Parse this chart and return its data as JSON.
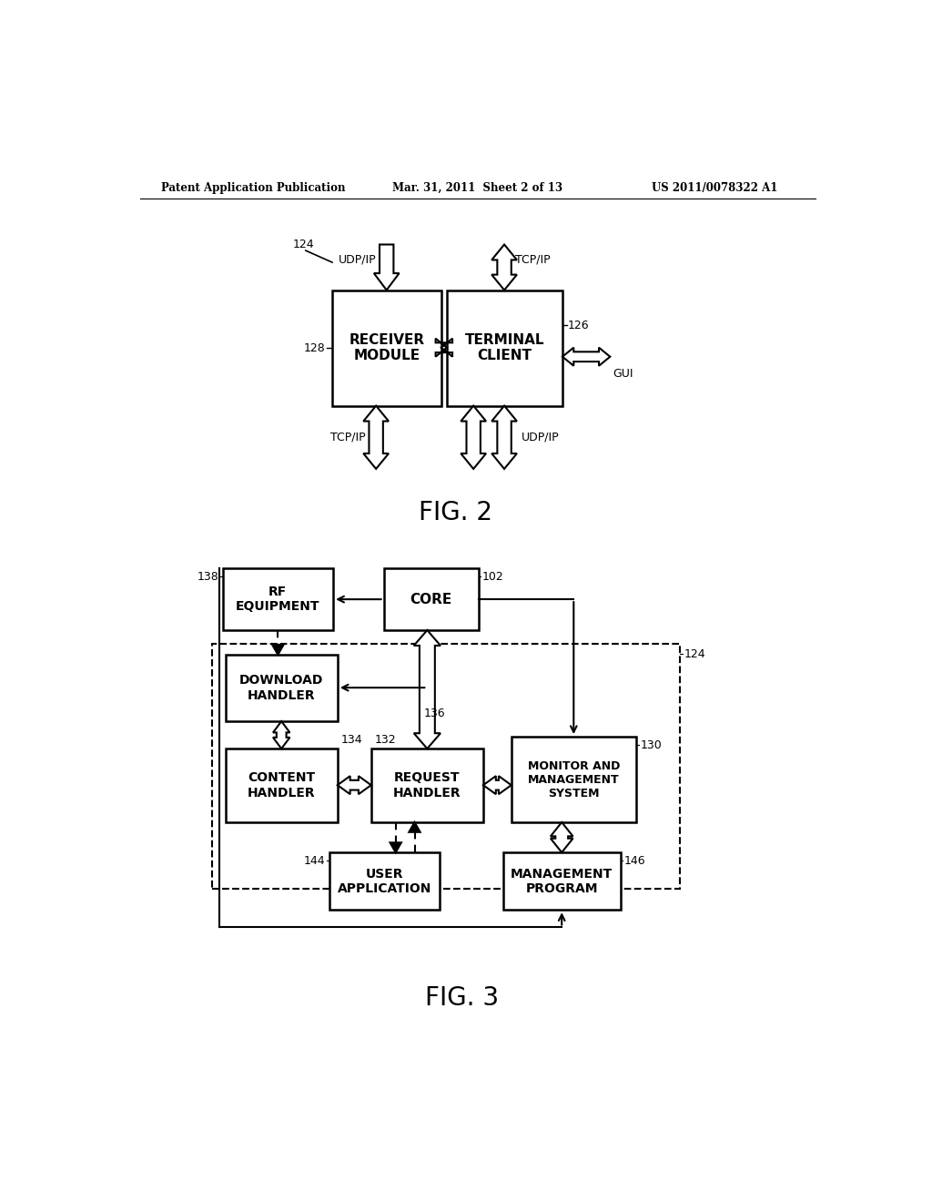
{
  "header_left": "Patent Application Publication",
  "header_mid": "Mar. 31, 2011  Sheet 2 of 13",
  "header_right": "US 2011/0078322 A1",
  "fig2_label": "FIG. 2",
  "fig3_label": "FIG. 3",
  "bg_color": "#ffffff",
  "text_color": "#000000"
}
